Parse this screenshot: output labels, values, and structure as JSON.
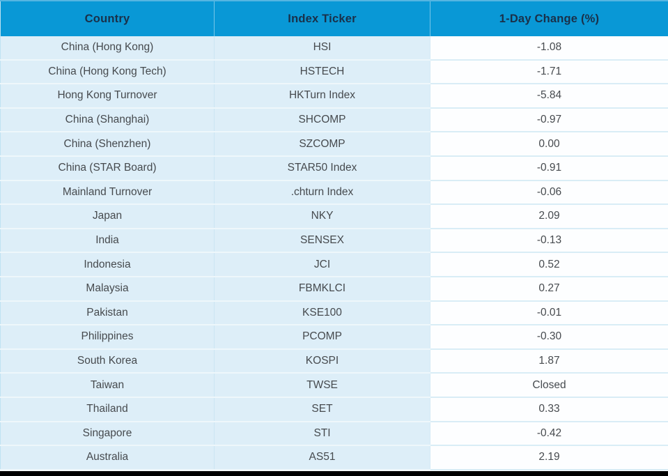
{
  "chart_data": {
    "type": "table",
    "columns": [
      "Country",
      "Index Ticker",
      "1-Day Change (%)"
    ],
    "rows": [
      [
        "China (Hong Kong)",
        "HSI",
        "-1.08"
      ],
      [
        "China (Hong Kong Tech)",
        "HSTECH",
        "-1.71"
      ],
      [
        "Hong Kong Turnover",
        "HKTurn Index",
        "-5.84"
      ],
      [
        "China (Shanghai)",
        "SHCOMP",
        "-0.97"
      ],
      [
        "China (Shenzhen)",
        "SZCOMP",
        "0.00"
      ],
      [
        "China (STAR Board)",
        "STAR50 Index",
        "-0.91"
      ],
      [
        "Mainland Turnover",
        ".chturn Index",
        "-0.06"
      ],
      [
        "Japan",
        "NKY",
        "2.09"
      ],
      [
        "India",
        "SENSEX",
        "-0.13"
      ],
      [
        "Indonesia",
        "JCI",
        "0.52"
      ],
      [
        "Malaysia",
        "FBMKLCI",
        "0.27"
      ],
      [
        "Pakistan",
        "KSE100",
        "-0.01"
      ],
      [
        "Philippines",
        "PCOMP",
        "-0.30"
      ],
      [
        "South Korea",
        "KOSPI",
        "1.87"
      ],
      [
        "Taiwan",
        "TWSE",
        "Closed"
      ],
      [
        "Thailand",
        "SET",
        "0.33"
      ],
      [
        "Singapore",
        "STI",
        "-0.42"
      ],
      [
        "Australia",
        "AS51",
        "2.19"
      ]
    ]
  },
  "colors": {
    "header_bg": "#0998d6",
    "header_text": "#1a3049",
    "row_bg_light_blue": "#ddeef8",
    "value_column_bg": "#ffffff",
    "body_text": "#464a4e",
    "bottom_bar": "#000000"
  }
}
